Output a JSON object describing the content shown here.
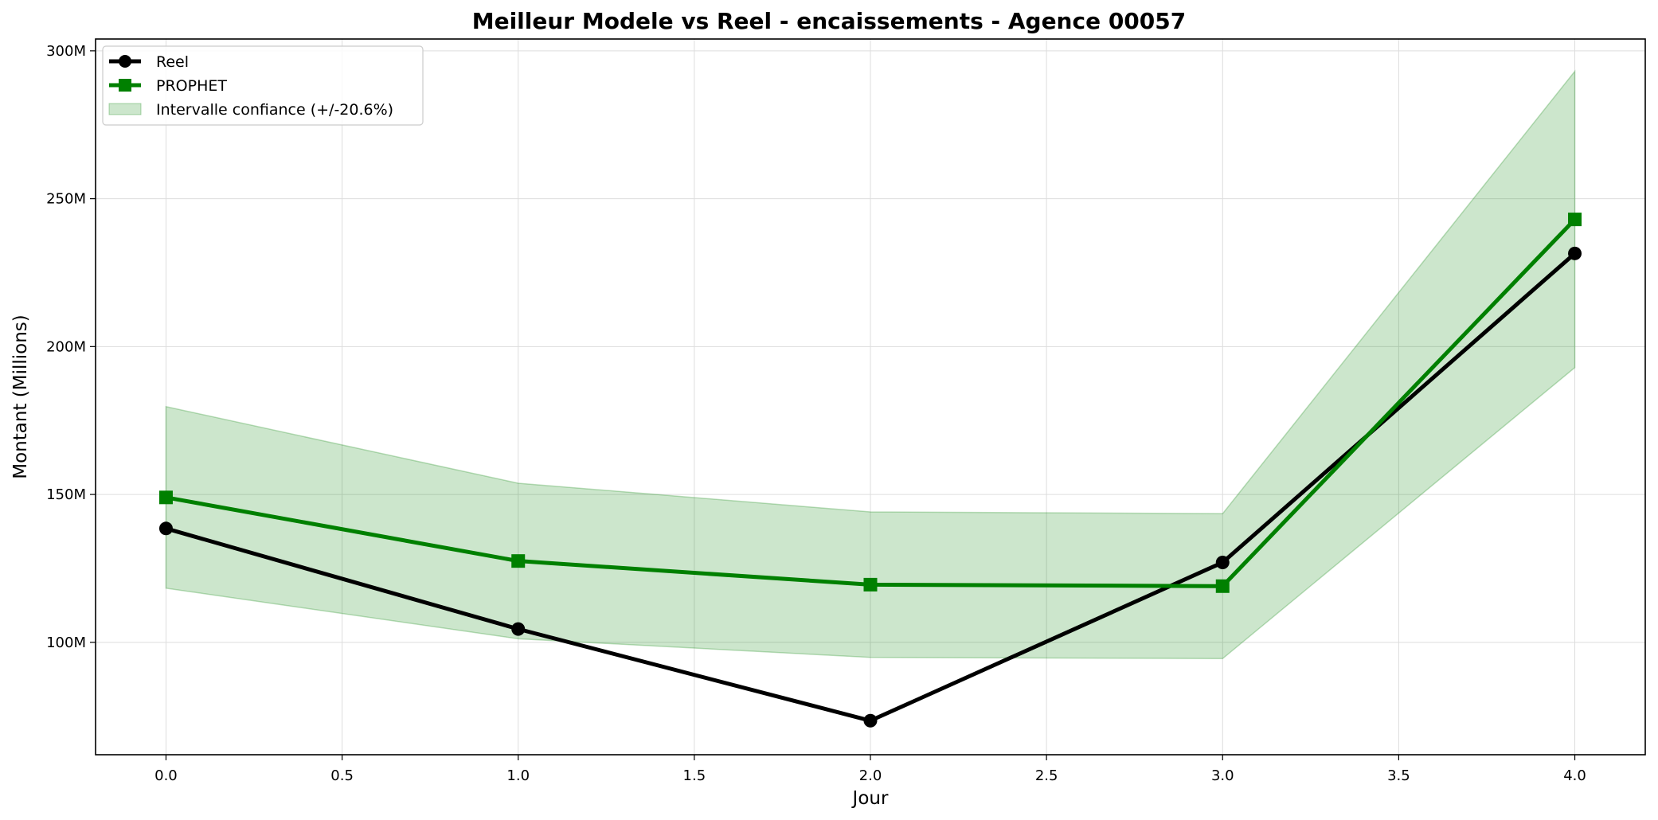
{
  "chart_data": {
    "type": "line",
    "title": "Meilleur Modele vs Reel - encaissements - Agence 00057",
    "xlabel": "Jour",
    "ylabel": "Montant (Millions)",
    "x": [
      0,
      1,
      2,
      3,
      4
    ],
    "xlim": [
      -0.2,
      4.2
    ],
    "ylim": [
      62,
      304
    ],
    "x_ticks": [
      0.0,
      0.5,
      1.0,
      1.5,
      2.0,
      2.5,
      3.0,
      3.5,
      4.0
    ],
    "x_tick_labels": [
      "0.0",
      "0.5",
      "1.0",
      "1.5",
      "2.0",
      "2.5",
      "3.0",
      "3.5",
      "4.0"
    ],
    "y_ticks": [
      100,
      150,
      200,
      250,
      300
    ],
    "y_tick_labels": [
      "100M",
      "150M",
      "200M",
      "250M",
      "300M"
    ],
    "grid": true,
    "legend_position": "top-left",
    "series": [
      {
        "name": "Reel",
        "values": [
          138.5,
          104.5,
          73.5,
          127.0,
          231.5
        ],
        "color": "#000000",
        "marker": "circle"
      },
      {
        "name": "PROPHET",
        "values": [
          149.0,
          127.5,
          119.5,
          119.0,
          243.0
        ],
        "color": "#008000",
        "marker": "square"
      }
    ],
    "band": {
      "name": "Intervalle confiance (+/-20.6%)",
      "lower": [
        118.3,
        101.2,
        94.9,
        94.5,
        192.9
      ],
      "upper": [
        179.7,
        153.8,
        144.1,
        143.5,
        293.1
      ],
      "color": "#008000"
    }
  }
}
